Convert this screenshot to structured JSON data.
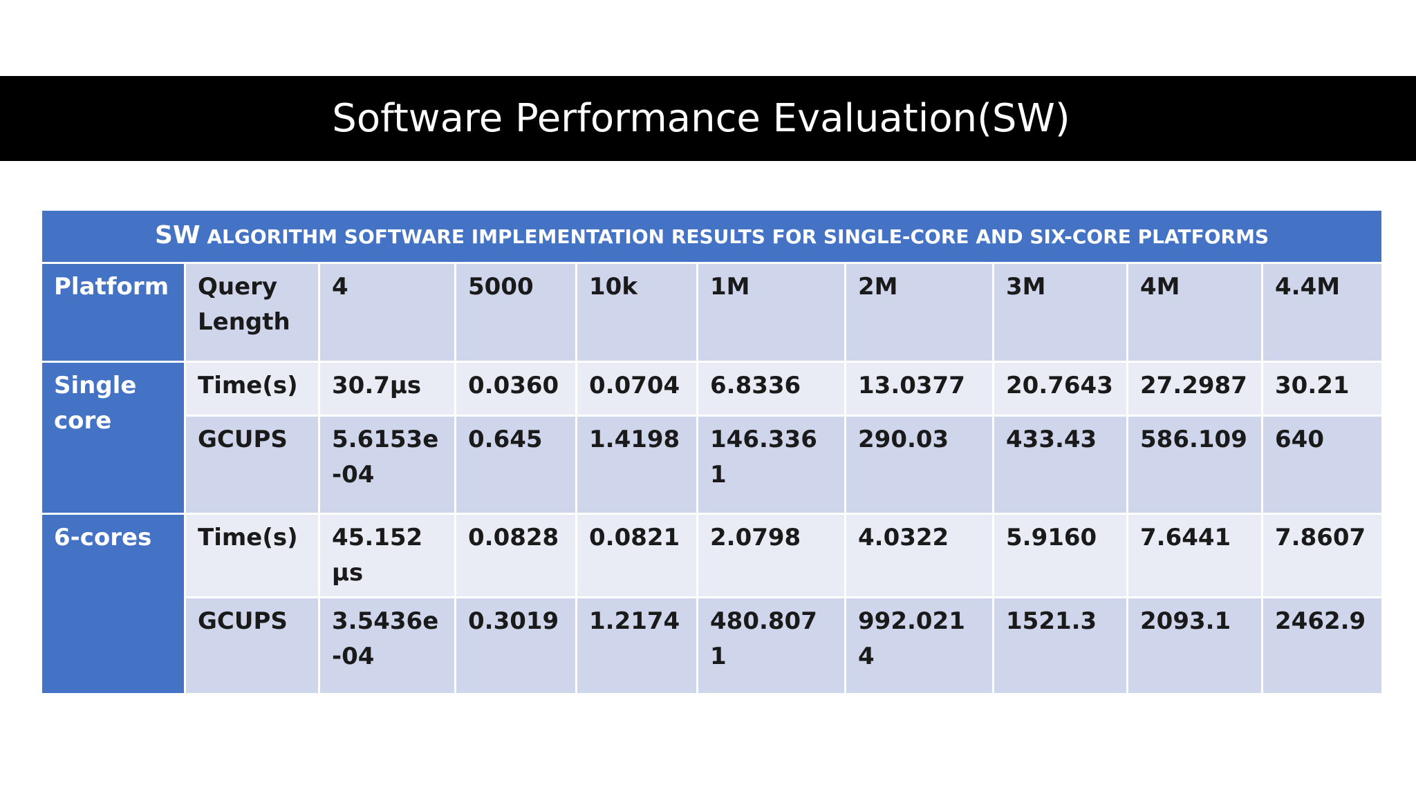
{
  "slide": {
    "title": "Software Performance Evaluation(SW)"
  },
  "table": {
    "caption_lead": "SW",
    "caption_rest": " ALGORITHM SOFTWARE IMPLEMENTATION RESULTS FOR SINGLE-CORE AND SIX-CORE PLATFORMS",
    "header": {
      "platform": "Platform",
      "metric": "Query Length",
      "lengths": [
        "4",
        "5000",
        "10k",
        "1M",
        "2M",
        "3M",
        "4M",
        "4.4M"
      ]
    },
    "groups": [
      {
        "platform": "Single core",
        "rows": [
          {
            "metric": "Time(s)",
            "values": [
              "30.7µs",
              "0.0360",
              "0.0704",
              "6.8336",
              "13.0377",
              "20.7643",
              "27.2987",
              "30.21"
            ]
          },
          {
            "metric": "GCUPS",
            "values": [
              "5.6153e-04",
              "0.645",
              "1.4198",
              "146.3361",
              "290.03",
              "433.43",
              "586.109",
              "640"
            ]
          }
        ]
      },
      {
        "platform": "6-cores",
        "rows": [
          {
            "metric": "Time(s)",
            "values": [
              "45.152 µs",
              "0.0828",
              "0.0821",
              "2.0798",
              "4.0322",
              "5.9160",
              "7.6441",
              "7.8607"
            ]
          },
          {
            "metric": "GCUPS",
            "values": [
              "3.5436e-04",
              "0.3019",
              "1.2174",
              "480.8071",
              "992.0214",
              "1521.3",
              "2093.1",
              "2462.9"
            ]
          }
        ]
      }
    ],
    "colors": {
      "header_blue": "#4472c4",
      "row_light": "#e9ebf5",
      "row_dark": "#cfd5ea"
    }
  }
}
